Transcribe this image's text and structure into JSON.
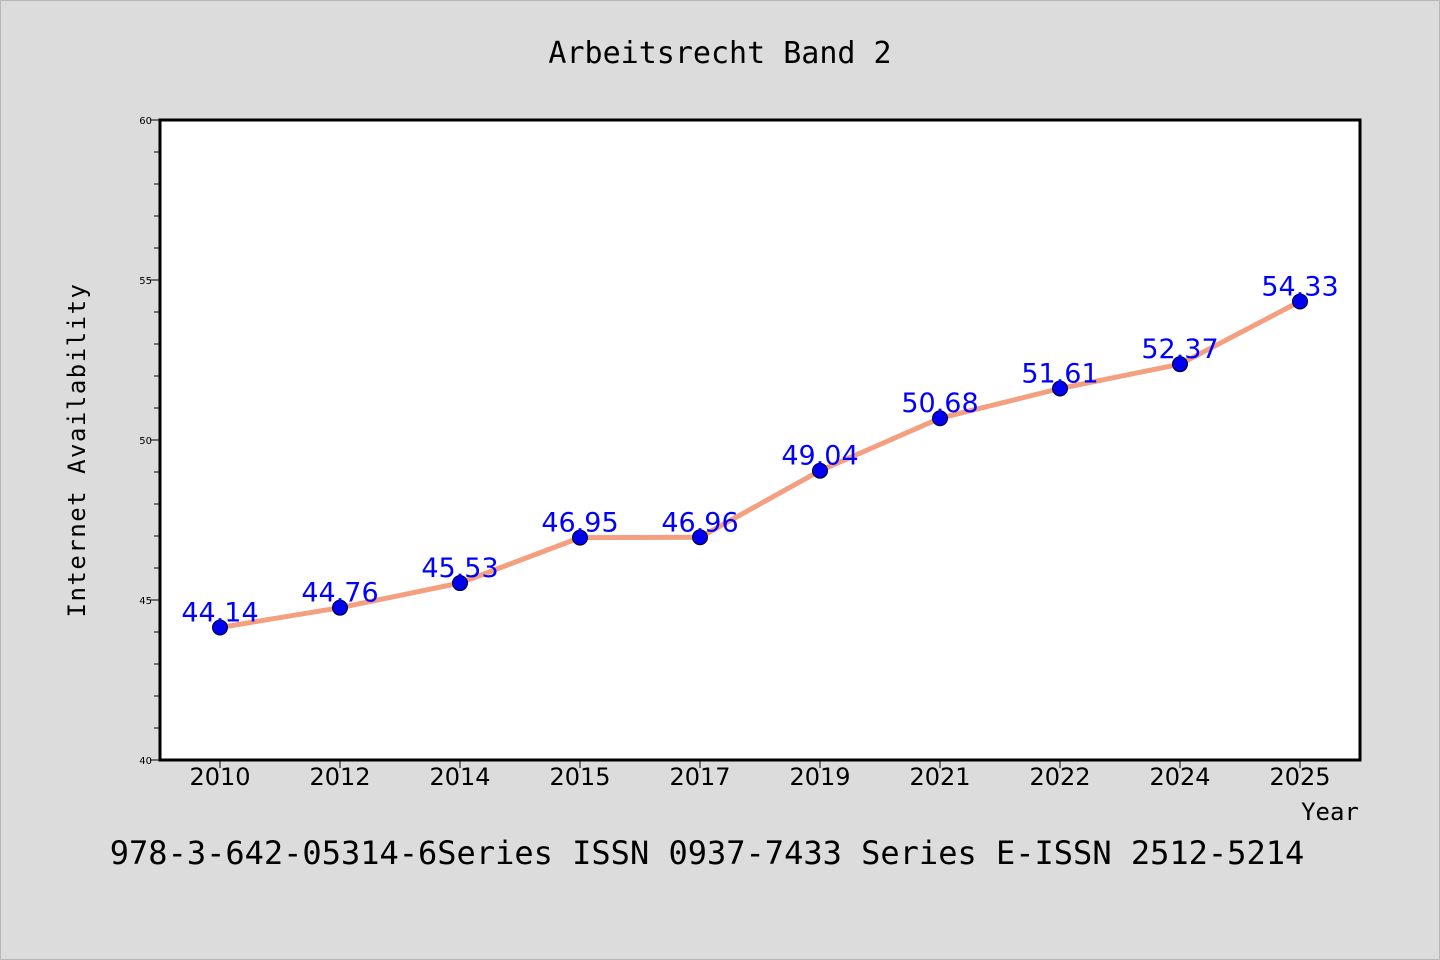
{
  "chart_data": {
    "type": "line",
    "title": "Arbeitsrecht Band 2",
    "xlabel": "Year",
    "ylabel": "Internet Availability",
    "footer": "978-3-642-05314-6Series ISSN 0937-7433 Series E-ISSN 2512-5214",
    "categories": [
      "2010",
      "2012",
      "2014",
      "2015",
      "2017",
      "2019",
      "2021",
      "2022",
      "2024",
      "2025"
    ],
    "series": [
      {
        "values": [
          44.14,
          44.76,
          45.53,
          46.95,
          46.96,
          49.04,
          50.68,
          51.61,
          52.37,
          54.33
        ],
        "labels": [
          "44.14",
          "44.76",
          "45.53",
          "46.95",
          "46.96",
          "49.04",
          "50.68",
          "51.61",
          "52.37",
          "54.33"
        ],
        "line_color": "#f4a080",
        "marker_color": "#0000ee",
        "label_color": "#0000ff"
      }
    ],
    "ylim": [
      40,
      60
    ],
    "yticks": [
      40,
      45,
      50,
      55,
      60
    ],
    "ytick_labels": [
      "40",
      "45",
      "50",
      "55",
      "60"
    ],
    "grid": false,
    "legend": "none",
    "colors": {
      "background": "#dcdcdc",
      "plot_background": "#ffffff"
    }
  }
}
